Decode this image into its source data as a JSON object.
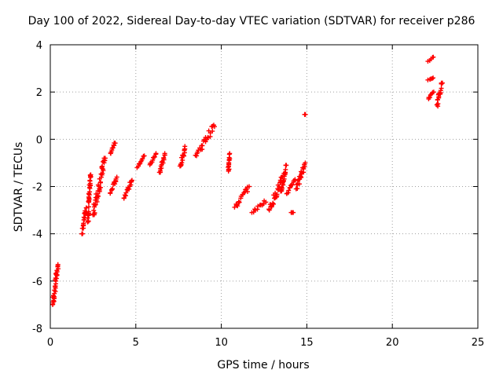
{
  "chart_data": {
    "type": "scatter",
    "title": "Day 100 of 2022, Sidereal Day-to-day VTEC variation (SDTVAR) for receiver p286",
    "xlabel": "GPS time / hours",
    "ylabel": "SDTVAR / TECUs",
    "xlim": [
      0,
      25
    ],
    "ylim": [
      -8,
      4
    ],
    "xticks": [
      0,
      5,
      10,
      15,
      20,
      25
    ],
    "yticks": [
      -8,
      -6,
      -4,
      -2,
      0,
      2,
      4
    ],
    "grid": true,
    "marker": "plus",
    "color": "#ff0000",
    "segments": [
      {
        "x": [
          0.15,
          0.45
        ],
        "y": [
          -7.0,
          -5.3
        ]
      },
      {
        "x": [
          1.85,
          2.1
        ],
        "y": [
          -4.0,
          -2.9
        ]
      },
      {
        "x": [
          2.2,
          2.35
        ],
        "y": [
          -3.5,
          -1.5
        ]
      },
      {
        "x": [
          2.5,
          3.2
        ],
        "y": [
          -3.2,
          -0.8
        ]
      },
      {
        "x": [
          3.5,
          3.9
        ],
        "y": [
          -2.3,
          -1.6
        ]
      },
      {
        "x": [
          3.5,
          3.8
        ],
        "y": [
          -0.6,
          -0.1
        ]
      },
      {
        "x": [
          4.3,
          4.8
        ],
        "y": [
          -2.5,
          -1.7
        ]
      },
      {
        "x": [
          5.1,
          5.5
        ],
        "y": [
          -1.2,
          -0.7
        ]
      },
      {
        "x": [
          5.8,
          6.2
        ],
        "y": [
          -1.1,
          -0.6
        ]
      },
      {
        "x": [
          6.4,
          6.7
        ],
        "y": [
          -1.4,
          -0.6
        ]
      },
      {
        "x": [
          7.6,
          7.9
        ],
        "y": [
          -1.2,
          -0.3
        ]
      },
      {
        "x": [
          8.5,
          9.6
        ],
        "y": [
          -0.7,
          0.6
        ]
      },
      {
        "x": [
          10.4,
          10.5
        ],
        "y": [
          -1.4,
          -0.6
        ]
      },
      {
        "x": [
          10.8,
          11.6
        ],
        "y": [
          -2.9,
          -2.0
        ]
      },
      {
        "x": [
          11.8,
          12.6
        ],
        "y": [
          -3.1,
          -2.6
        ]
      },
      {
        "x": [
          12.8,
          13.6
        ],
        "y": [
          -3.0,
          -1.6
        ]
      },
      {
        "x": [
          13.5,
          13.8
        ],
        "y": [
          -2.2,
          -1.1
        ]
      },
      {
        "x": [
          13.8,
          14.3
        ],
        "y": [
          -2.3,
          -1.7
        ]
      },
      {
        "x": [
          14.1,
          14.2
        ],
        "y": [
          -3.1,
          -3.1
        ]
      },
      {
        "x": [
          14.4,
          14.9
        ],
        "y": [
          -2.1,
          -1.0
        ]
      },
      {
        "x": [
          14.9,
          14.9
        ],
        "y": [
          1.05,
          1.05
        ]
      },
      {
        "x": [
          22.1,
          22.4
        ],
        "y": [
          3.3,
          3.5
        ]
      },
      {
        "x": [
          22.1,
          22.4
        ],
        "y": [
          2.5,
          2.6
        ]
      },
      {
        "x": [
          22.1,
          22.4
        ],
        "y": [
          1.7,
          2.0
        ]
      },
      {
        "x": [
          22.6,
          22.9
        ],
        "y": [
          1.4,
          2.4
        ]
      }
    ]
  }
}
